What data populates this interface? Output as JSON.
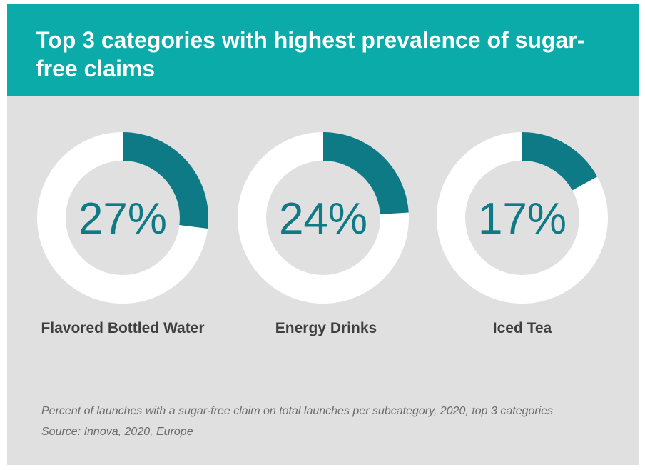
{
  "header": {
    "title": "Top 3 categories with highest prevalence of sugar-free claims"
  },
  "chart_data": {
    "type": "pie",
    "title": "Top 3 categories with highest prevalence of sugar-free claims",
    "categories": [
      "Flavored Bottled Water",
      "Energy Drinks",
      "Iced Tea"
    ],
    "values": [
      27,
      24,
      17
    ],
    "value_labels": [
      "27%",
      "24%",
      "17%"
    ],
    "unit": "%",
    "colors": {
      "filled": "#0d7a86",
      "remainder": "#ffffff",
      "inner": "#e0e0e0"
    }
  },
  "footnote": {
    "description": "Percent of launches with a sugar-free claim on total launches per subcategory, 2020, top 3 categories",
    "source": "Source: Innova, 2020, Europe"
  }
}
